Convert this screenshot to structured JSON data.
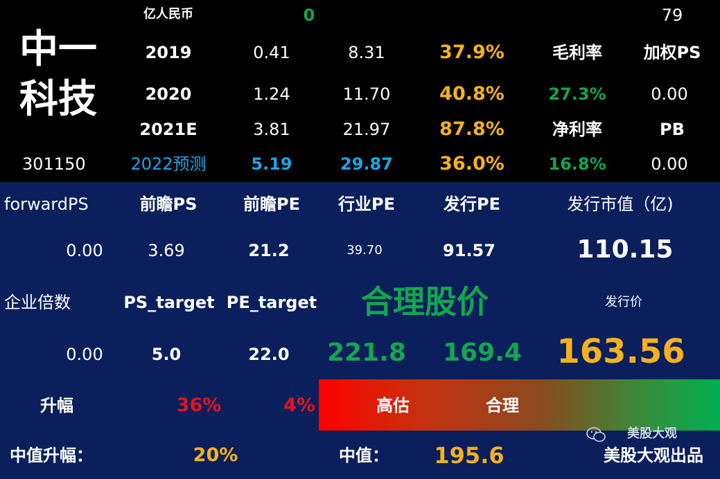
{
  "company": {
    "name_line1": "中一",
    "name_line2": "科技",
    "code": "301150"
  },
  "top": {
    "unit": "亿人民币",
    "zero": "0",
    "value79": "79",
    "rows": [
      {
        "year": "2019",
        "rev": "0.41",
        "pe": "8.31",
        "growth": "37.9%"
      },
      {
        "year": "2020",
        "rev": "1.24",
        "pe": "11.70",
        "growth": "40.8%"
      },
      {
        "year": "2021E",
        "rev": "3.81",
        "pe": "21.97",
        "growth": "87.8%"
      },
      {
        "year": "2022预测",
        "rev": "5.19",
        "pe": "29.87",
        "growth": "36.0%"
      }
    ],
    "gross_margin_label": "毛利率",
    "gross_margin": "27.3%",
    "weighted_ps_label": "加权PS",
    "weighted_ps": "0.00",
    "net_margin_label": "净利率",
    "net_margin": "16.8%",
    "pb_label": "PB",
    "pb": "0.00"
  },
  "mid": {
    "forward_ps_label": "forwardPS",
    "forward_ps": "0.00",
    "qianzhan_ps_label": "前瞻PS",
    "qianzhan_ps": "3.69",
    "qianzhan_pe_label": "前瞻PE",
    "qianzhan_pe": "21.2",
    "industry_pe_label": "行业PE",
    "industry_pe": "39.70",
    "ipo_pe_label": "发行PE",
    "ipo_pe": "91.57",
    "ipo_mcap_label": "发行市值（亿)",
    "ipo_mcap": "110.15",
    "ev_label": "企业倍数",
    "ev": "0.00",
    "ps_target_label": "PS_target",
    "ps_target": "5.0",
    "pe_target_label": "PE_target",
    "pe_target": "22.0",
    "fair_price_label": "合理股价",
    "fair_price_1": "221.8",
    "fair_price_2": "169.4",
    "ipo_price_label": "发行价",
    "ipo_price": "163.56"
  },
  "bottom": {
    "rise_label": "升幅",
    "rise_1": "36%",
    "rise_2": "4%",
    "overvalued": "高估",
    "fair": "合理",
    "median_rise_label": "中值升幅：",
    "median_rise": "20%",
    "median_label": "中值：",
    "median": "195.6",
    "watermark_top": "美股大观",
    "watermark_bottom": "美股大观出品"
  },
  "colors": {
    "orange": "#f5b21c",
    "green": "#12a650",
    "blue": "#1aa6e8",
    "red": "#e8121c",
    "navy": "#0a1f5c"
  }
}
